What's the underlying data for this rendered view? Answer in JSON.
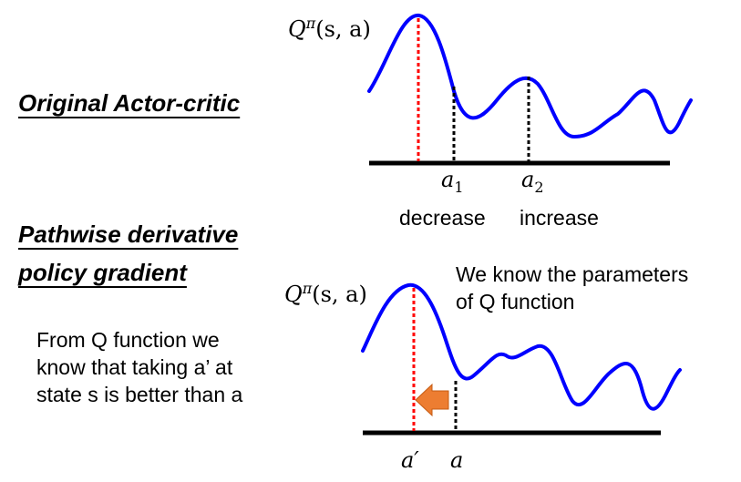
{
  "top": {
    "title": "Original Actor-critic",
    "q_label": {
      "base": "Q",
      "sup": "π",
      "args": "(s, a)"
    },
    "a1": {
      "base": "a",
      "sub": "1"
    },
    "a2": {
      "base": "a",
      "sub": "2"
    },
    "decrease_label": "decrease",
    "increase_label": "increase"
  },
  "bottom": {
    "title_line1": "Pathwise derivative",
    "title_line2": "policy gradient",
    "q_label": {
      "base": "Q",
      "sup": "π",
      "args": "(s, a)"
    },
    "explanation": [
      "From Q function we",
      "know that taking a’ at",
      "state s is better than a"
    ],
    "note": [
      "We know the parameters",
      "of Q function"
    ],
    "a_prime": "a′",
    "a": "a"
  },
  "colors": {
    "curve": "#0000ff",
    "max_line": "#ff0000",
    "action_line": "#000000",
    "arrow": "#ed7d31",
    "axis": "#000000"
  }
}
